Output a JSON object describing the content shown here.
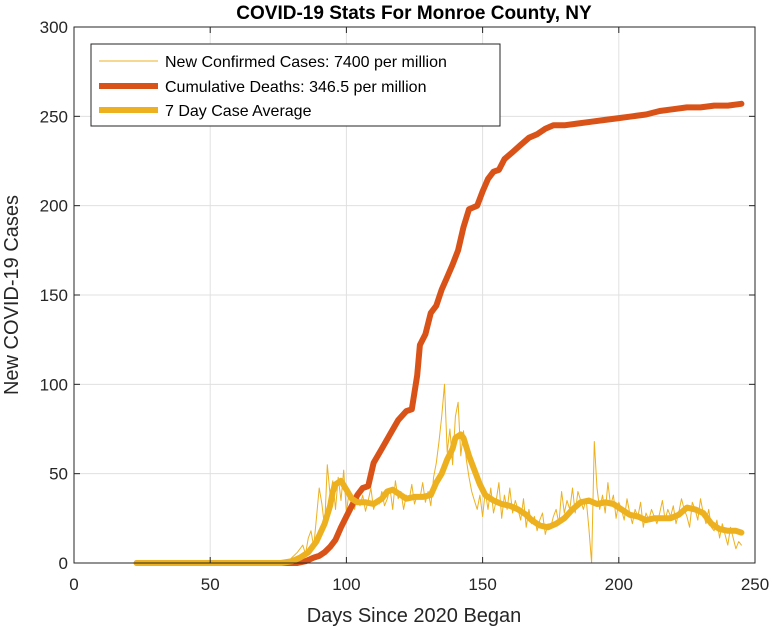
{
  "chart_data": {
    "type": "line",
    "title": "COVID-19 Stats For Monroe County, NY",
    "xlabel": "Days Since 2020 Began",
    "ylabel": "New COVID-19 Cases",
    "xlim": [
      0,
      250
    ],
    "ylim": [
      0,
      300
    ],
    "xticks": [
      0,
      50,
      100,
      150,
      200,
      250
    ],
    "yticks": [
      0,
      50,
      100,
      150,
      200,
      250,
      300
    ],
    "grid": true,
    "legend_position": "top-left",
    "series": [
      {
        "name": "New Confirmed Cases: 7400 per million",
        "color": "#EDB120",
        "style": "thin",
        "points": [
          [
            23,
            0
          ],
          [
            40,
            0
          ],
          [
            60,
            0
          ],
          [
            74,
            0
          ],
          [
            76,
            1
          ],
          [
            78,
            0
          ],
          [
            80,
            3
          ],
          [
            82,
            6
          ],
          [
            84,
            10
          ],
          [
            85,
            5
          ],
          [
            86,
            14
          ],
          [
            87,
            18
          ],
          [
            88,
            9
          ],
          [
            89,
            25
          ],
          [
            90,
            42
          ],
          [
            91,
            33
          ],
          [
            92,
            20
          ],
          [
            93,
            55
          ],
          [
            94,
            38
          ],
          [
            95,
            46
          ],
          [
            96,
            30
          ],
          [
            97,
            48
          ],
          [
            98,
            35
          ],
          [
            99,
            52
          ],
          [
            100,
            28
          ],
          [
            101,
            40
          ],
          [
            102,
            35
          ],
          [
            103,
            30
          ],
          [
            104,
            40
          ],
          [
            105,
            32
          ],
          [
            106,
            38
          ],
          [
            107,
            29
          ],
          [
            108,
            35
          ],
          [
            109,
            42
          ],
          [
            110,
            30
          ],
          [
            111,
            35
          ],
          [
            112,
            33
          ],
          [
            113,
            40
          ],
          [
            114,
            32
          ],
          [
            115,
            36
          ],
          [
            116,
            42
          ],
          [
            117,
            30
          ],
          [
            118,
            46
          ],
          [
            119,
            36
          ],
          [
            120,
            40
          ],
          [
            121,
            30
          ],
          [
            122,
            38
          ],
          [
            123,
            35
          ],
          [
            124,
            44
          ],
          [
            125,
            33
          ],
          [
            126,
            38
          ],
          [
            127,
            36
          ],
          [
            128,
            45
          ],
          [
            129,
            34
          ],
          [
            130,
            40
          ],
          [
            131,
            32
          ],
          [
            132,
            48
          ],
          [
            133,
            56
          ],
          [
            134,
            68
          ],
          [
            135,
            82
          ],
          [
            136,
            100
          ],
          [
            137,
            62
          ],
          [
            138,
            75
          ],
          [
            139,
            55
          ],
          [
            140,
            82
          ],
          [
            141,
            90
          ],
          [
            142,
            60
          ],
          [
            143,
            74
          ],
          [
            144,
            58
          ],
          [
            145,
            48
          ],
          [
            146,
            40
          ],
          [
            147,
            35
          ],
          [
            148,
            30
          ],
          [
            149,
            38
          ],
          [
            150,
            26
          ],
          [
            151,
            40
          ],
          [
            152,
            30
          ],
          [
            153,
            42
          ],
          [
            154,
            28
          ],
          [
            155,
            35
          ],
          [
            156,
            45
          ],
          [
            157,
            25
          ],
          [
            158,
            38
          ],
          [
            159,
            30
          ],
          [
            160,
            42
          ],
          [
            161,
            28
          ],
          [
            162,
            35
          ],
          [
            163,
            30
          ],
          [
            164,
            24
          ],
          [
            165,
            36
          ],
          [
            166,
            20
          ],
          [
            167,
            30
          ],
          [
            168,
            22
          ],
          [
            169,
            26
          ],
          [
            170,
            18
          ],
          [
            171,
            24
          ],
          [
            172,
            28
          ],
          [
            173,
            16
          ],
          [
            174,
            22
          ],
          [
            175,
            20
          ],
          [
            176,
            26
          ],
          [
            177,
            30
          ],
          [
            178,
            22
          ],
          [
            179,
            40
          ],
          [
            180,
            28
          ],
          [
            181,
            35
          ],
          [
            182,
            30
          ],
          [
            183,
            42
          ],
          [
            184,
            28
          ],
          [
            185,
            40
          ],
          [
            186,
            35
          ],
          [
            187,
            30
          ],
          [
            188,
            36
          ],
          [
            189,
            20
          ],
          [
            190,
            0
          ],
          [
            191,
            68
          ],
          [
            192,
            42
          ],
          [
            193,
            30
          ],
          [
            194,
            38
          ],
          [
            195,
            28
          ],
          [
            196,
            45
          ],
          [
            197,
            32
          ],
          [
            198,
            38
          ],
          [
            199,
            25
          ],
          [
            200,
            34
          ],
          [
            201,
            30
          ],
          [
            202,
            24
          ],
          [
            203,
            36
          ],
          [
            204,
            28
          ],
          [
            205,
            22
          ],
          [
            206,
            30
          ],
          [
            207,
            26
          ],
          [
            208,
            34
          ],
          [
            209,
            20
          ],
          [
            210,
            28
          ],
          [
            211,
            24
          ],
          [
            212,
            30
          ],
          [
            213,
            26
          ],
          [
            214,
            22
          ],
          [
            215,
            28
          ],
          [
            216,
            35
          ],
          [
            217,
            24
          ],
          [
            218,
            30
          ],
          [
            219,
            26
          ],
          [
            220,
            32
          ],
          [
            221,
            22
          ],
          [
            222,
            28
          ],
          [
            223,
            36
          ],
          [
            224,
            30
          ],
          [
            225,
            26
          ],
          [
            226,
            20
          ],
          [
            227,
            34
          ],
          [
            228,
            30
          ],
          [
            229,
            24
          ],
          [
            230,
            36
          ],
          [
            231,
            28
          ],
          [
            232,
            22
          ],
          [
            233,
            30
          ],
          [
            234,
            20
          ],
          [
            235,
            18
          ],
          [
            236,
            24
          ],
          [
            237,
            14
          ],
          [
            238,
            22
          ],
          [
            239,
            16
          ],
          [
            240,
            10
          ],
          [
            241,
            20
          ],
          [
            242,
            14
          ],
          [
            243,
            8
          ],
          [
            244,
            12
          ],
          [
            245,
            10
          ]
        ]
      },
      {
        "name": "Cumulative Deaths: 346.5 per million",
        "color": "#D95319",
        "style": "thick",
        "points": [
          [
            23,
            0
          ],
          [
            60,
            0
          ],
          [
            82,
            0
          ],
          [
            85,
            1
          ],
          [
            88,
            3
          ],
          [
            90,
            4
          ],
          [
            92,
            6
          ],
          [
            94,
            9
          ],
          [
            96,
            13
          ],
          [
            98,
            20
          ],
          [
            100,
            26
          ],
          [
            102,
            32
          ],
          [
            104,
            38
          ],
          [
            106,
            42
          ],
          [
            108,
            43
          ],
          [
            110,
            56
          ],
          [
            113,
            64
          ],
          [
            116,
            72
          ],
          [
            119,
            80
          ],
          [
            122,
            85
          ],
          [
            124,
            86
          ],
          [
            126,
            105
          ],
          [
            127,
            122
          ],
          [
            129,
            128
          ],
          [
            131,
            140
          ],
          [
            133,
            144
          ],
          [
            135,
            153
          ],
          [
            137,
            160
          ],
          [
            139,
            167
          ],
          [
            141,
            175
          ],
          [
            143,
            188
          ],
          [
            145,
            198
          ],
          [
            148,
            200
          ],
          [
            150,
            208
          ],
          [
            152,
            215
          ],
          [
            154,
            219
          ],
          [
            156,
            220
          ],
          [
            158,
            226
          ],
          [
            161,
            230
          ],
          [
            164,
            234
          ],
          [
            167,
            238
          ],
          [
            170,
            240
          ],
          [
            173,
            243
          ],
          [
            176,
            245
          ],
          [
            180,
            245
          ],
          [
            185,
            246
          ],
          [
            190,
            247
          ],
          [
            195,
            248
          ],
          [
            200,
            249
          ],
          [
            205,
            250
          ],
          [
            210,
            251
          ],
          [
            215,
            253
          ],
          [
            220,
            254
          ],
          [
            225,
            255
          ],
          [
            230,
            255
          ],
          [
            235,
            256
          ],
          [
            240,
            256
          ],
          [
            245,
            257
          ]
        ]
      },
      {
        "name": "7 Day Case Average",
        "color": "#EDB120",
        "style": "thick",
        "points": [
          [
            23,
            0
          ],
          [
            60,
            0
          ],
          [
            76,
            0
          ],
          [
            80,
            1
          ],
          [
            83,
            3
          ],
          [
            86,
            6
          ],
          [
            89,
            12
          ],
          [
            92,
            22
          ],
          [
            94,
            32
          ],
          [
            95,
            40
          ],
          [
            96,
            44
          ],
          [
            98,
            46
          ],
          [
            100,
            41
          ],
          [
            102,
            36
          ],
          [
            104,
            34
          ],
          [
            107,
            34
          ],
          [
            110,
            33
          ],
          [
            113,
            36
          ],
          [
            115,
            40
          ],
          [
            117,
            41
          ],
          [
            120,
            38
          ],
          [
            122,
            36
          ],
          [
            125,
            37
          ],
          [
            128,
            37
          ],
          [
            131,
            38
          ],
          [
            133,
            45
          ],
          [
            135,
            50
          ],
          [
            137,
            58
          ],
          [
            139,
            64
          ],
          [
            140,
            70
          ],
          [
            142,
            72
          ],
          [
            143,
            70
          ],
          [
            145,
            60
          ],
          [
            147,
            52
          ],
          [
            149,
            44
          ],
          [
            151,
            38
          ],
          [
            154,
            35
          ],
          [
            157,
            33
          ],
          [
            160,
            32
          ],
          [
            163,
            30
          ],
          [
            166,
            27
          ],
          [
            168,
            24
          ],
          [
            171,
            21
          ],
          [
            174,
            20
          ],
          [
            177,
            22
          ],
          [
            180,
            25
          ],
          [
            183,
            30
          ],
          [
            186,
            34
          ],
          [
            189,
            35
          ],
          [
            192,
            33
          ],
          [
            195,
            34
          ],
          [
            198,
            33
          ],
          [
            201,
            30
          ],
          [
            204,
            27
          ],
          [
            207,
            26
          ],
          [
            210,
            24
          ],
          [
            213,
            25
          ],
          [
            216,
            25
          ],
          [
            219,
            25
          ],
          [
            222,
            27
          ],
          [
            225,
            31
          ],
          [
            228,
            30
          ],
          [
            231,
            28
          ],
          [
            234,
            22
          ],
          [
            237,
            19
          ],
          [
            240,
            18
          ],
          [
            243,
            18
          ],
          [
            245,
            17
          ]
        ]
      }
    ]
  }
}
